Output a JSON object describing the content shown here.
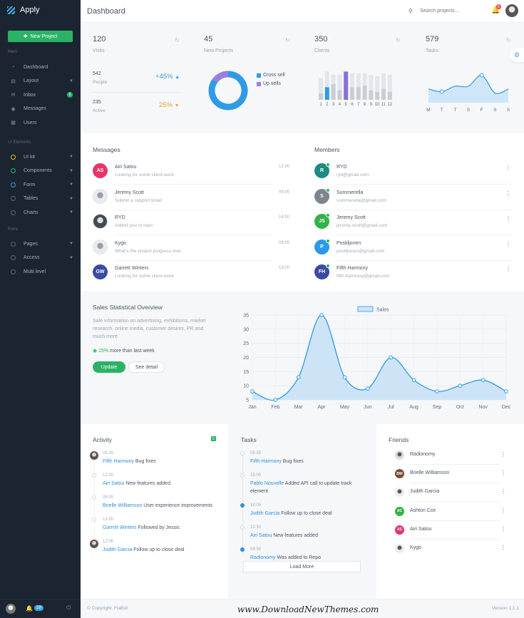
{
  "app": {
    "name": "Apply"
  },
  "sidebar": {
    "new_project": "New Project",
    "sections": {
      "main": "Main",
      "ui": "UI Elements",
      "extra": "Extra"
    },
    "main_items": [
      {
        "label": "Dashboard",
        "icon": "dashboard-icon"
      },
      {
        "label": "Layout",
        "icon": "layout-icon"
      },
      {
        "label": "Inbox",
        "icon": "inbox-icon",
        "badge": "6"
      },
      {
        "label": "Messages",
        "icon": "messages-icon"
      },
      {
        "label": "Users",
        "icon": "users-icon"
      }
    ],
    "ui_items": [
      {
        "label": "UI kit",
        "color": "#f0b429"
      },
      {
        "label": "Components",
        "color": "#2ab267"
      },
      {
        "label": "Form",
        "color": "#3aa0e0"
      },
      {
        "label": "Tables",
        "color": ""
      },
      {
        "label": "Charts",
        "color": ""
      }
    ],
    "extra_items": [
      {
        "label": "Pages"
      },
      {
        "label": "Access"
      },
      {
        "label": "Multi level"
      }
    ],
    "bottom_badge": "29"
  },
  "header": {
    "title": "Dashboard",
    "search_placeholder": "Search projects...",
    "notif_count": "6"
  },
  "stats": {
    "visits": {
      "value": "120",
      "label": "Visits"
    },
    "new_projects": {
      "value": "45",
      "label": "New Projects"
    },
    "clients": {
      "value": "350",
      "label": "Clients"
    },
    "tasks": {
      "value": "579",
      "label": "Tasks"
    },
    "people": {
      "value": "542",
      "label": "People",
      "delta": "+45%"
    },
    "active": {
      "value": "235",
      "label": "Active",
      "delta": "25%"
    },
    "legend": {
      "cross": "Cross sell",
      "up": "Up sells"
    }
  },
  "chart_data": [
    {
      "type": "pie",
      "categories": [
        "Cross sell",
        "Up sells"
      ],
      "values": [
        85,
        15
      ],
      "colors": [
        "#2e9be6",
        "#9b7fe0"
      ]
    },
    {
      "type": "bar",
      "categories": [
        "1",
        "2",
        "3",
        "4",
        "5",
        "6",
        "7",
        "8",
        "9",
        "10",
        "11",
        "12"
      ],
      "values": [
        4,
        8,
        10,
        6,
        18,
        8,
        8,
        9,
        6,
        5,
        7,
        5
      ],
      "background_values": [
        14,
        18,
        16,
        16,
        18,
        17,
        17,
        17,
        16,
        15,
        17,
        16
      ],
      "highlight": {
        "1": "#2e9be6",
        "4": "#8a6fdc"
      },
      "ylim": [
        0,
        20
      ]
    },
    {
      "type": "area",
      "categories": [
        "M",
        "T",
        "T",
        "S",
        "F",
        "S",
        "S"
      ],
      "values": [
        10,
        8,
        12,
        12,
        20,
        7,
        10
      ],
      "ylim": [
        0,
        24
      ]
    },
    {
      "type": "area",
      "categories": [
        "Jan",
        "Feb",
        "Mar",
        "Apr",
        "May",
        "Jun",
        "Jul",
        "Aug",
        "Sep",
        "Oct",
        "Nov",
        "Dec"
      ],
      "series": [
        {
          "name": "Sales",
          "values": [
            8,
            5,
            13,
            35,
            13,
            9,
            20,
            12,
            8,
            10,
            12,
            8
          ]
        }
      ],
      "yticks": [
        5,
        10,
        15,
        20,
        25,
        30,
        35
      ],
      "ylim": [
        5,
        35
      ],
      "grid": true,
      "legend": "top-center"
    }
  ],
  "messages": {
    "title": "Messages",
    "items": [
      {
        "name": "Airi Satou",
        "text": "Looking for some client-work",
        "time": "12:30",
        "initials": "AS",
        "color": "#e8336b"
      },
      {
        "name": "Jeremy Scott",
        "text": "Submit a support ticket",
        "time": "09:05",
        "initials": "",
        "color": "#e9ecef"
      },
      {
        "name": "RYD",
        "text": "Added you to repo",
        "time": "14:00",
        "initials": "",
        "color": "#444a52"
      },
      {
        "name": "Kygo",
        "text": "What's the project progress now",
        "time": "08:05",
        "initials": "",
        "color": "#e9ecef"
      },
      {
        "name": "Garrett Winters",
        "text": "Looking for some client-work",
        "time": "13:00",
        "initials": "GW",
        "color": "#3b4ba3"
      }
    ]
  },
  "members": {
    "title": "Members",
    "items": [
      {
        "name": "RYD",
        "email": "ryd@gmail.com",
        "initials": "R",
        "color": "#1e8c80",
        "status": "#2ab267"
      },
      {
        "name": "Summerella",
        "email": "summerella@gmail.com",
        "initials": "S",
        "color": "#7d858f",
        "status": "#2ab267"
      },
      {
        "name": "Jeremy Scott",
        "email": "jeremy-scott@gmail.com",
        "initials": "JS",
        "color": "#33b24a",
        "status": "#2ab267"
      },
      {
        "name": "Postiljonen",
        "email": "postiljonen@gmail.com",
        "initials": "P",
        "color": "#2a9ae8",
        "status": "#2ab267"
      },
      {
        "name": "Fifth Harmony",
        "email": "fifth-harmony@gmail.com",
        "initials": "FH",
        "color": "#3b4ba3",
        "status": "#2ab267"
      }
    ]
  },
  "sales": {
    "title": "Sales Statistical Overview",
    "desc": "Sale information on advertising, exhibitions, market research, online media, customer desires, PR and much more",
    "growth": "15%",
    "growth_text": "more than last week",
    "update": "Update",
    "detail": "See detail"
  },
  "activity": {
    "title": "Activity",
    "badge": "5",
    "items": [
      {
        "time": "05:35",
        "who": "Fifth Harmony",
        "what": "Bug fixes"
      },
      {
        "time": "12:30",
        "who": "Airi Satou",
        "what": "New features added"
      },
      {
        "time": "08:00",
        "who": "Brielle Williamson",
        "what": "User experience improvements"
      },
      {
        "time": "13:00",
        "who": "Garrett Winters",
        "what": "Followed by Jessic"
      },
      {
        "time": "12:05",
        "who": "Judith Garcia",
        "what": "Follow up to close deal"
      }
    ]
  },
  "tasks": {
    "title": "Tasks",
    "load_more": "Load More",
    "items": [
      {
        "time": "05:35",
        "who": "Fifth Harmony",
        "what": "Bug fixes"
      },
      {
        "time": "15:00",
        "who": "Pablo Nouvelle",
        "what": "Added API call to update track element"
      },
      {
        "time": "12:05",
        "who": "Judith Garcia",
        "what": "Follow up to close deal"
      },
      {
        "time": "12:30",
        "who": "Airi Satou",
        "what": "New features added"
      },
      {
        "time": "09:50",
        "who": "Radionomy",
        "what": "Was added to Repo"
      }
    ]
  },
  "friends": {
    "title": "Friends",
    "items": [
      {
        "name": "Radionomy",
        "initials": "",
        "color": "#d9dde2"
      },
      {
        "name": "Brielle Williamson",
        "initials": "BW",
        "color": "#7a4b3a"
      },
      {
        "name": "Judith Garcia",
        "initials": "",
        "color": "#e9ecef"
      },
      {
        "name": "Ashton Cox",
        "initials": "AC",
        "color": "#33b24a"
      },
      {
        "name": "Airi Satou",
        "initials": "AS",
        "color": "#e8336b"
      },
      {
        "name": "Kygo",
        "initials": "",
        "color": "#e9ecef"
      }
    ]
  },
  "footer": {
    "copyright": "© Copyright. Flatfull",
    "watermark": "www.DownloadNewThemes.com",
    "version": "Version 1.1.1"
  }
}
